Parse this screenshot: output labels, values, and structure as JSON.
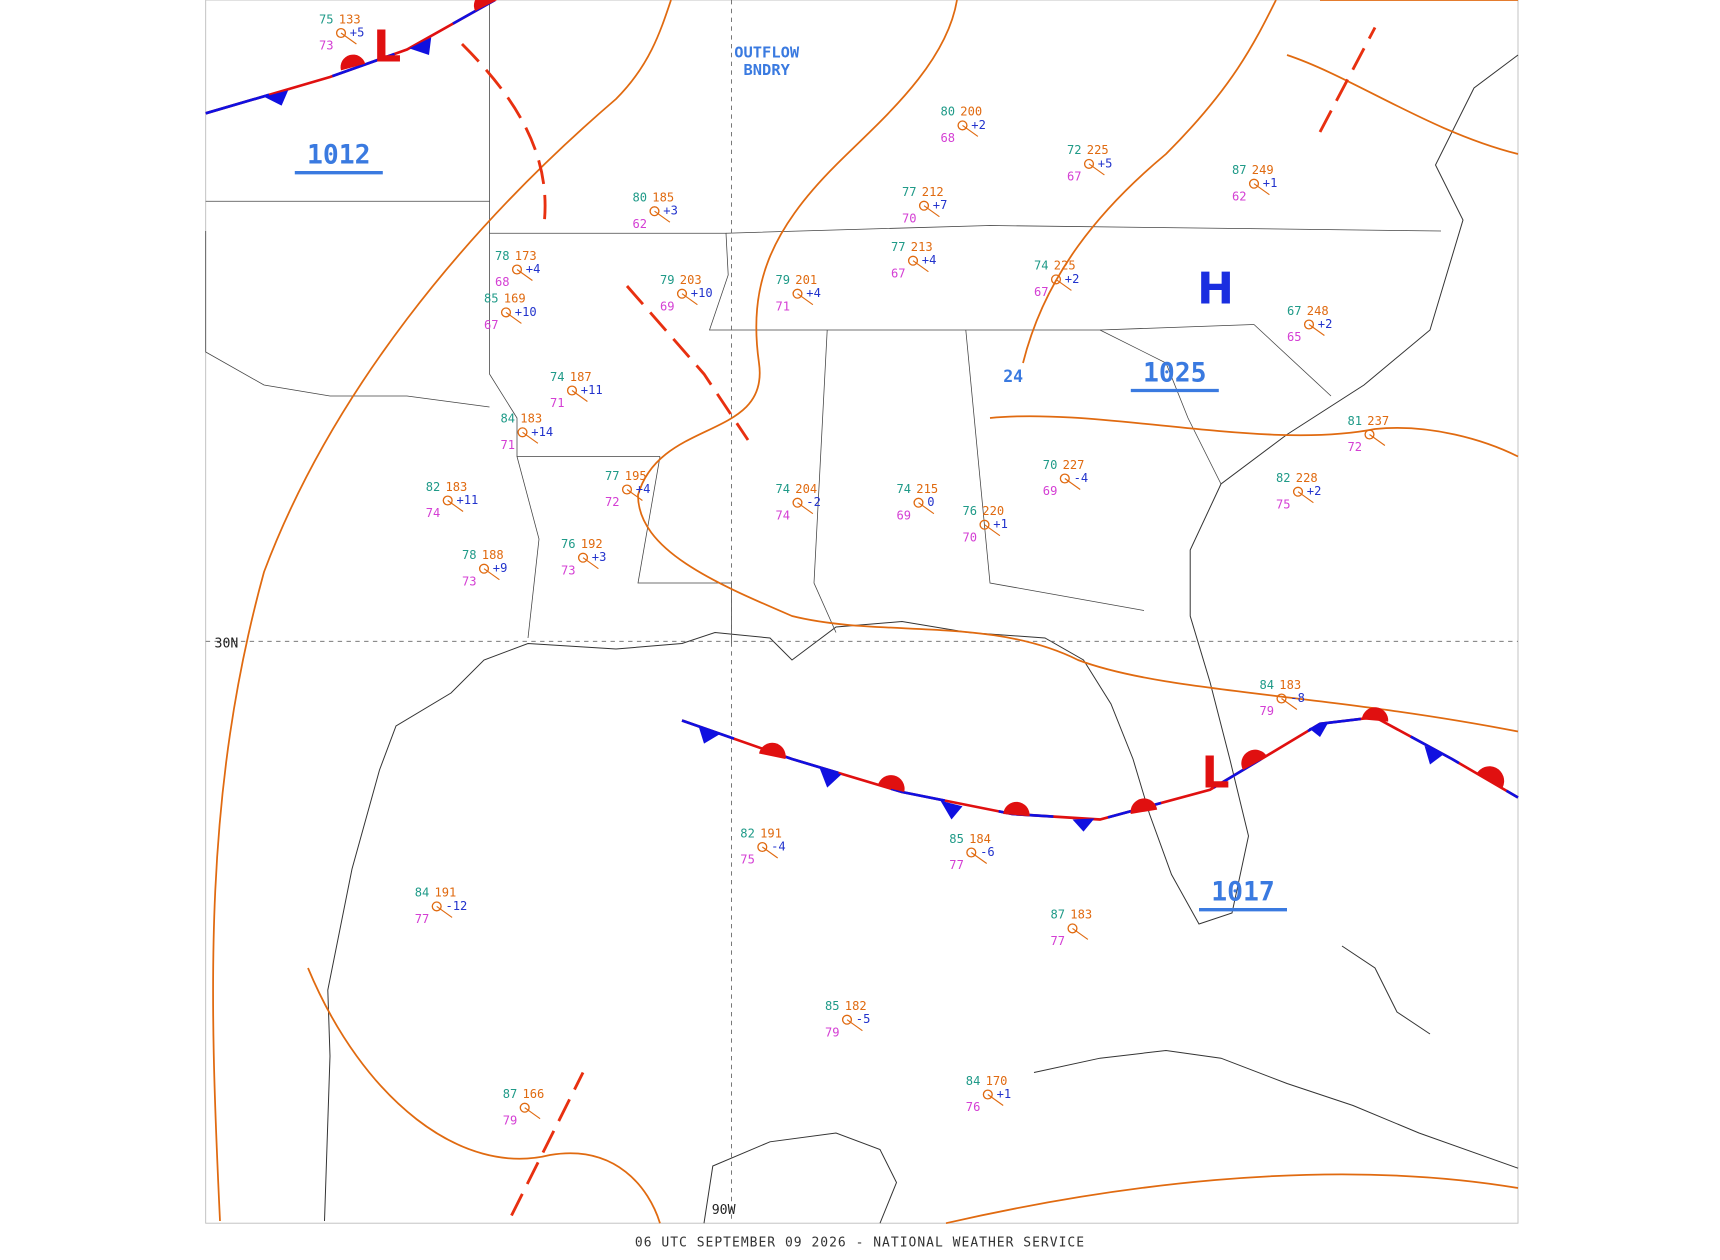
{
  "map": {
    "footer": "06 UTC SEPTEMBER 09 2026 - NATIONAL WEATHER SERVICE",
    "boundary_label": [
      "OUTFLOW",
      "BNDRY"
    ],
    "latitude_label": "30N",
    "longitude_label": "90W",
    "extra_label": "24",
    "pressure_centers": [
      {
        "symbol": "L",
        "value": "1012"
      },
      {
        "symbol": "H",
        "value": "1025"
      },
      {
        "symbol": "L",
        "value": "1017"
      }
    ],
    "stations": [
      {
        "temp": "75",
        "pressure": "133",
        "dewpoint": "73",
        "tendency": "+5"
      },
      {
        "temp": "80",
        "pressure": "185",
        "dewpoint": "62",
        "tendency": "+3"
      },
      {
        "temp": "79",
        "pressure": "203",
        "dewpoint": "69",
        "tendency": "+10"
      },
      {
        "temp": "79",
        "pressure": "201",
        "dewpoint": "71",
        "tendency": "+4"
      },
      {
        "temp": "77",
        "pressure": "213",
        "dewpoint": "67",
        "tendency": "+4"
      },
      {
        "temp": "74",
        "pressure": "225",
        "dewpoint": "67",
        "tendency": "+2"
      },
      {
        "temp": "72",
        "pressure": "225",
        "dewpoint": "67",
        "tendency": "+5"
      },
      {
        "temp": "80",
        "pressure": "200",
        "dewpoint": "68",
        "tendency": "+2"
      },
      {
        "temp": "77",
        "pressure": "212",
        "dewpoint": "70",
        "tendency": "+7"
      },
      {
        "temp": "78",
        "pressure": "173",
        "dewpoint": "68",
        "tendency": "+4"
      },
      {
        "temp": "85",
        "pressure": "169",
        "dewpoint": "67",
        "tendency": "+10"
      },
      {
        "temp": "74",
        "pressure": "187",
        "dewpoint": "71",
        "tendency": "+11"
      },
      {
        "temp": "84",
        "pressure": "183",
        "dewpoint": "71",
        "tendency": "+14"
      },
      {
        "temp": "82",
        "pressure": "183",
        "dewpoint": "74",
        "tendency": "+11"
      },
      {
        "temp": "78",
        "pressure": "188",
        "dewpoint": "73",
        "tendency": "+9"
      },
      {
        "temp": "76",
        "pressure": "192",
        "dewpoint": "73",
        "tendency": "+3"
      },
      {
        "temp": "77",
        "pressure": "195",
        "dewpoint": "72",
        "tendency": "+4"
      },
      {
        "temp": "74",
        "pressure": "204",
        "dewpoint": "74",
        "tendency": "-2"
      },
      {
        "temp": "74",
        "pressure": "215",
        "dewpoint": "69",
        "tendency": "0"
      },
      {
        "temp": "76",
        "pressure": "220",
        "dewpoint": "70",
        "tendency": "+1"
      },
      {
        "temp": "70",
        "pressure": "227",
        "dewpoint": "69",
        "tendency": "-4"
      },
      {
        "temp": "82",
        "pressure": "228",
        "dewpoint": "75",
        "tendency": "+2"
      },
      {
        "temp": "81",
        "pressure": "237",
        "dewpoint": "72"
      },
      {
        "temp": "87",
        "pressure": "249",
        "dewpoint": "62",
        "tendency": "+1"
      },
      {
        "temp": "67",
        "pressure": "248",
        "dewpoint": "65",
        "tendency": "+2"
      },
      {
        "temp": "84",
        "pressure": "183",
        "dewpoint": "79",
        "tendency": "-8"
      },
      {
        "temp": "85",
        "pressure": "184",
        "dewpoint": "77",
        "tendency": "-6"
      },
      {
        "temp": "82",
        "pressure": "191",
        "dewpoint": "75",
        "tendency": "-4"
      },
      {
        "temp": "84",
        "pressure": "191",
        "dewpoint": "77",
        "tendency": "-12"
      },
      {
        "temp": "85",
        "pressure": "182",
        "dewpoint": "79",
        "tendency": "-5"
      },
      {
        "temp": "84",
        "pressure": "170",
        "dewpoint": "76",
        "tendency": "+1"
      },
      {
        "temp": "87",
        "pressure": "183",
        "dewpoint": "77"
      },
      {
        "temp": "87",
        "pressure": "166",
        "dewpoint": "79"
      }
    ]
  }
}
